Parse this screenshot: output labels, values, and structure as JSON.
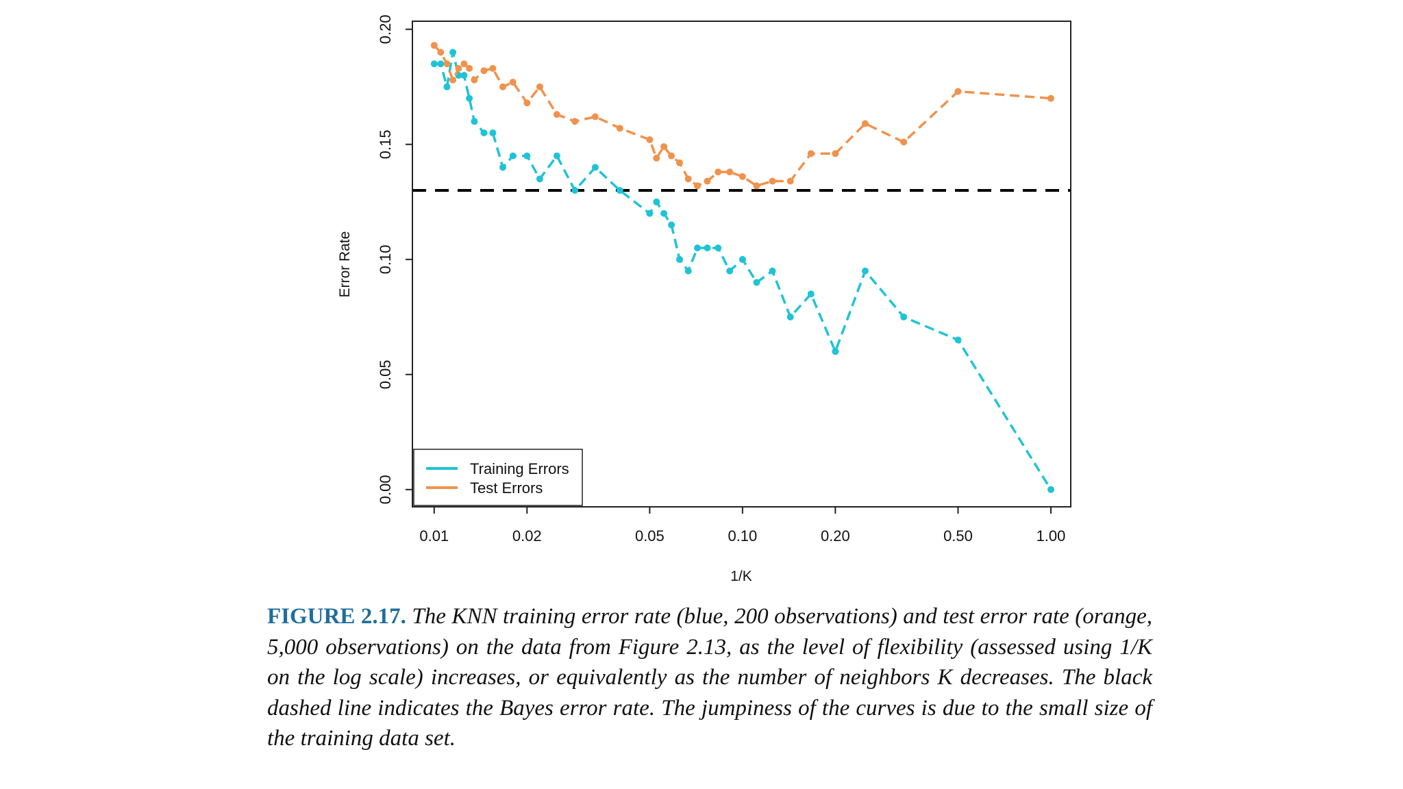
{
  "chart_data": {
    "type": "line",
    "xlabel": "1/K",
    "ylabel": "Error Rate",
    "xscale": "log",
    "xlim": [
      0.0085,
      1.16
    ],
    "ylim": [
      -0.0075,
      0.2035
    ],
    "xticks": [
      {
        "value": 0.01,
        "label": "0.01"
      },
      {
        "value": 0.02,
        "label": "0.02"
      },
      {
        "value": 0.05,
        "label": "0.05"
      },
      {
        "value": 0.1,
        "label": "0.10"
      },
      {
        "value": 0.2,
        "label": "0.20"
      },
      {
        "value": 0.5,
        "label": "0.50"
      },
      {
        "value": 1.0,
        "label": "1.00"
      }
    ],
    "yticks": [
      {
        "value": 0.0,
        "label": "0.00"
      },
      {
        "value": 0.05,
        "label": "0.05"
      },
      {
        "value": 0.1,
        "label": "0.10"
      },
      {
        "value": 0.15,
        "label": "0.15"
      },
      {
        "value": 0.2,
        "label": "0.20"
      }
    ],
    "bayes_error_rate": 0.13,
    "legend_position": "bottom-left",
    "series": [
      {
        "name": "Training Errors",
        "color": "#1fc3d6",
        "x": [
          0.01,
          0.0105,
          0.011,
          0.0115,
          0.012,
          0.0125,
          0.013,
          0.0135,
          0.0145,
          0.0155,
          0.0167,
          0.018,
          0.02,
          0.022,
          0.025,
          0.0286,
          0.0333,
          0.04,
          0.05,
          0.0526,
          0.0556,
          0.0588,
          0.0625,
          0.0667,
          0.0714,
          0.0769,
          0.0833,
          0.0909,
          0.1,
          0.1111,
          0.125,
          0.1429,
          0.1667,
          0.2,
          0.25,
          0.3333,
          0.5,
          1.0
        ],
        "y": [
          0.185,
          0.185,
          0.175,
          0.19,
          0.18,
          0.18,
          0.17,
          0.16,
          0.155,
          0.155,
          0.14,
          0.145,
          0.145,
          0.135,
          0.145,
          0.13,
          0.14,
          0.13,
          0.12,
          0.125,
          0.12,
          0.115,
          0.1,
          0.095,
          0.105,
          0.105,
          0.105,
          0.095,
          0.1,
          0.09,
          0.095,
          0.075,
          0.085,
          0.06,
          0.095,
          0.075,
          0.065,
          0.0
        ]
      },
      {
        "name": "Test Errors",
        "color": "#f0924c",
        "x": [
          0.01,
          0.0105,
          0.011,
          0.0115,
          0.012,
          0.0125,
          0.013,
          0.0135,
          0.0145,
          0.0155,
          0.0167,
          0.018,
          0.02,
          0.022,
          0.025,
          0.0286,
          0.0333,
          0.04,
          0.05,
          0.0526,
          0.0556,
          0.0588,
          0.0625,
          0.0667,
          0.0714,
          0.0769,
          0.0833,
          0.0909,
          0.1,
          0.1111,
          0.125,
          0.1429,
          0.1667,
          0.2,
          0.25,
          0.3333,
          0.5,
          1.0
        ],
        "y": [
          0.193,
          0.19,
          0.185,
          0.178,
          0.183,
          0.185,
          0.183,
          0.178,
          0.182,
          0.183,
          0.175,
          0.177,
          0.168,
          0.175,
          0.163,
          0.16,
          0.162,
          0.157,
          0.152,
          0.144,
          0.149,
          0.145,
          0.142,
          0.135,
          0.132,
          0.134,
          0.138,
          0.138,
          0.136,
          0.132,
          0.134,
          0.134,
          0.146,
          0.146,
          0.159,
          0.151,
          0.173,
          0.17
        ]
      }
    ]
  },
  "caption": {
    "label": "FIGURE 2.17.",
    "text": "The KNN training error rate (blue, 200 observations) and test error rate (orange, 5,000 observations) on the data from Figure 2.13, as the level of flexibility (assessed using 1/K on the log scale) increases, or equivalently as the number of neighbors K decreases. The black dashed line indicates the Bayes error rate. The jumpiness of the curves is due to the small size of the training data set."
  }
}
